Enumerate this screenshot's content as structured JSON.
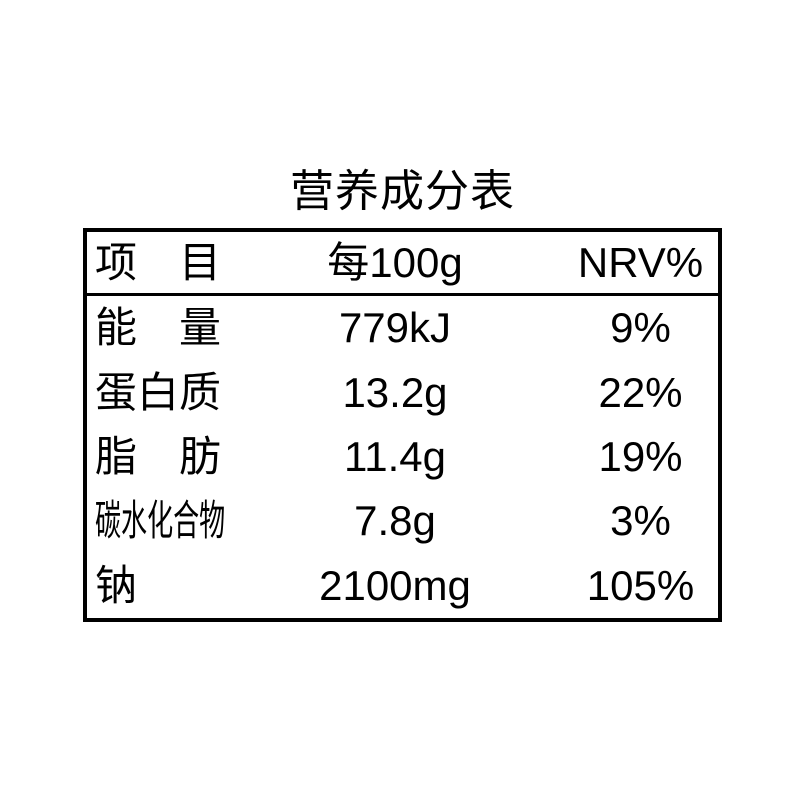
{
  "title": "营养成分表",
  "table": {
    "header": {
      "item": "项　目",
      "per100g": "每100g",
      "nrv": "NRV%"
    },
    "rows": [
      {
        "item": "能　量",
        "value": "779kJ",
        "nrv": "9%"
      },
      {
        "item": "蛋白质",
        "value": "13.2g",
        "nrv": "22%"
      },
      {
        "item": "脂　肪",
        "value": "11.4g",
        "nrv": "19%"
      },
      {
        "item": "碳水化合物",
        "value": "7.8g",
        "nrv": "3%"
      },
      {
        "item": "钠",
        "value": "2100mg",
        "nrv": "105%"
      }
    ]
  },
  "colors": {
    "text": "#000000",
    "background": "#ffffff",
    "border": "#000000"
  }
}
